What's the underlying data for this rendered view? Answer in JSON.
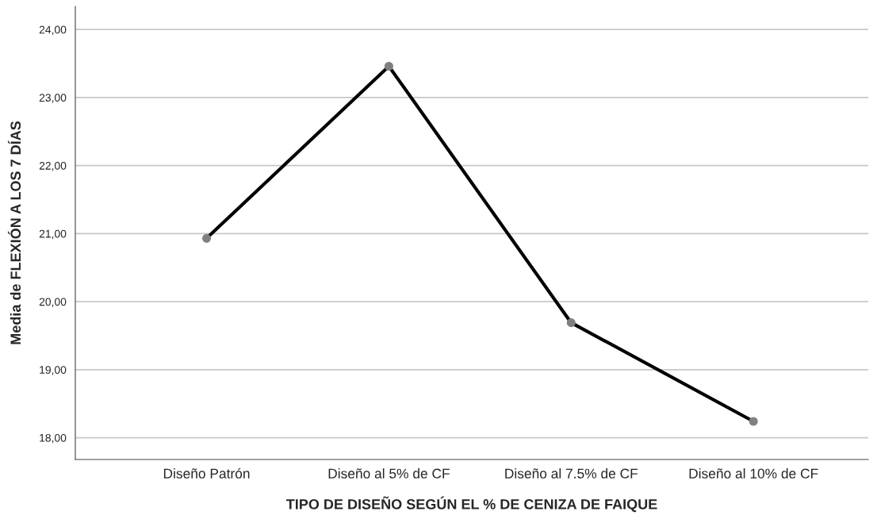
{
  "chart_data": {
    "type": "line",
    "xlabel": "TIPO DE DISEÑO SEGÚN EL % DE CENIZA DE FAIQUE",
    "ylabel": "Media de FLEXIÓN A LOS 7 DÍAS",
    "categories": [
      "Diseño Patrón",
      "Diseño al 5% de CF",
      "Diseño al 7.5% de CF",
      "Diseño al 10% de CF"
    ],
    "series": [
      {
        "color": "#000000",
        "values": [
          20.93,
          23.46,
          19.69,
          18.24
        ]
      }
    ],
    "ylim": [
      17.68,
      24.34
    ],
    "yticks": [
      {
        "value": 18,
        "label": "18,00"
      },
      {
        "value": 19,
        "label": "19,00"
      },
      {
        "value": 20,
        "label": "20,00"
      },
      {
        "value": 21,
        "label": "21,00"
      },
      {
        "value": 22,
        "label": "22,00"
      },
      {
        "value": 23,
        "label": "23,00"
      },
      {
        "value": 24,
        "label": "24,00"
      }
    ],
    "grid": "y",
    "marker": "circle",
    "line_style": "solid",
    "legend": false
  }
}
